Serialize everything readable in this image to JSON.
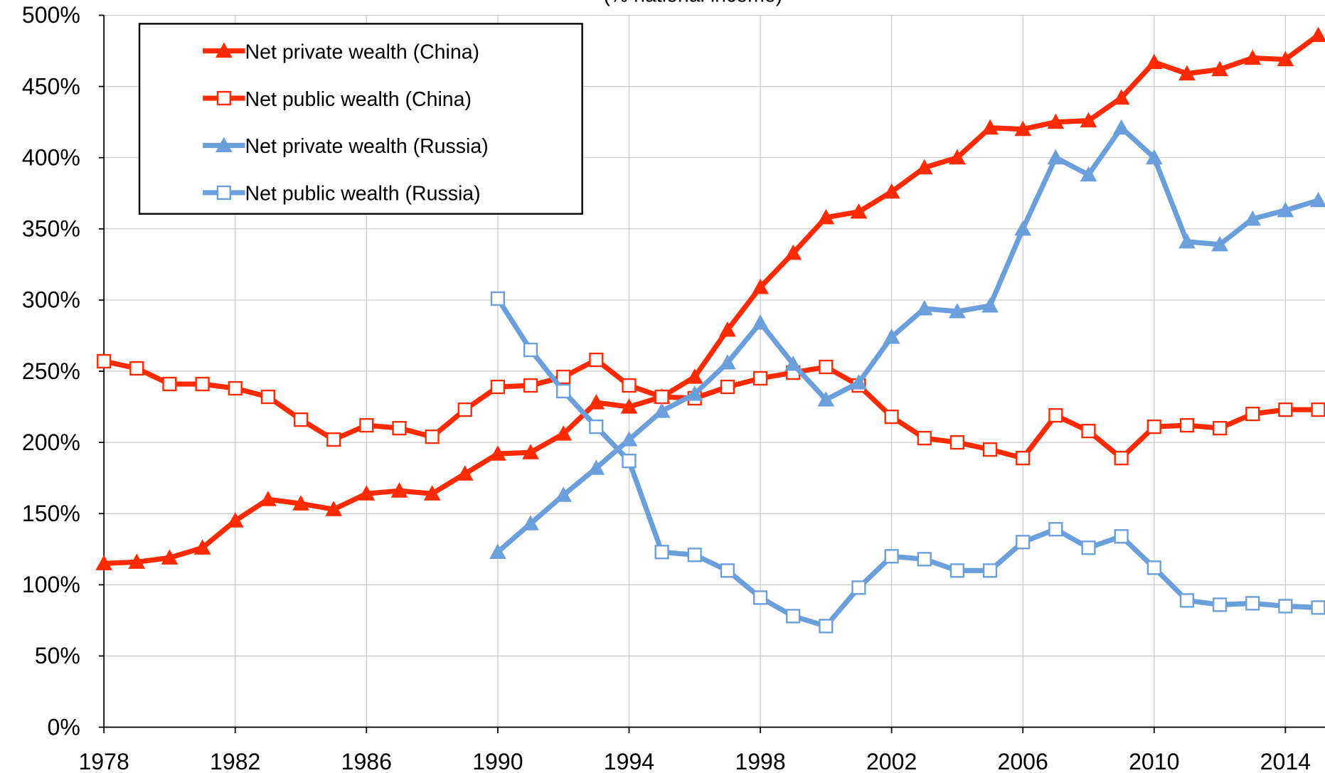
{
  "chart_data": {
    "type": "line",
    "subtitle": "(% national income)",
    "x": [
      1978,
      1979,
      1980,
      1981,
      1982,
      1983,
      1984,
      1985,
      1986,
      1987,
      1988,
      1989,
      1990,
      1991,
      1992,
      1993,
      1994,
      1995,
      1996,
      1997,
      1998,
      1999,
      2000,
      2001,
      2002,
      2003,
      2004,
      2005,
      2006,
      2007,
      2008,
      2009,
      2010,
      2011,
      2012,
      2013,
      2014,
      2015
    ],
    "series": [
      {
        "name": "Net private wealth (China)",
        "color": "#ff2a00",
        "marker": "triangle",
        "values": [
          115,
          116,
          119,
          126,
          145,
          160,
          157,
          153,
          164,
          166,
          164,
          178,
          192,
          193,
          206,
          228,
          225,
          232,
          246,
          279,
          309,
          333,
          358,
          362,
          376,
          393,
          400,
          421,
          420,
          425,
          426,
          442,
          467,
          459,
          462,
          470,
          469,
          486
        ]
      },
      {
        "name": "Net public wealth (China)",
        "color": "#ff2a00",
        "marker": "square",
        "values": [
          257,
          252,
          241,
          241,
          238,
          232,
          216,
          202,
          212,
          210,
          204,
          223,
          239,
          240,
          246,
          258,
          240,
          232,
          231,
          239,
          245,
          249,
          253,
          240,
          218,
          203,
          200,
          195,
          189,
          219,
          208,
          189,
          211,
          212,
          210,
          220,
          223,
          223
        ]
      },
      {
        "name": "Net private wealth (Russia)",
        "color": "#6a9fdc",
        "marker": "triangle",
        "values": [
          null,
          null,
          null,
          null,
          null,
          null,
          null,
          null,
          null,
          null,
          null,
          null,
          123,
          143,
          163,
          182,
          202,
          222,
          234,
          256,
          284,
          255,
          230,
          242,
          274,
          294,
          292,
          296,
          350,
          400,
          388,
          421,
          400,
          341,
          339,
          357,
          363,
          370
        ]
      },
      {
        "name": "Net public wealth (Russia)",
        "color": "#6a9fdc",
        "marker": "square",
        "values": [
          null,
          null,
          null,
          null,
          null,
          null,
          null,
          null,
          null,
          null,
          null,
          null,
          301,
          265,
          236,
          211,
          187,
          123,
          121,
          110,
          91,
          78,
          71,
          98,
          120,
          118,
          110,
          110,
          130,
          139,
          126,
          134,
          112,
          89,
          86,
          87,
          85,
          84
        ]
      }
    ],
    "xlim": [
      1978,
      2015
    ],
    "xticks": [
      1978,
      1982,
      1986,
      1990,
      1994,
      1998,
      2002,
      2006,
      2010,
      2014
    ],
    "ylim": [
      0,
      500
    ],
    "yticks": [
      {
        "value": 0,
        "label": "0%"
      },
      {
        "value": 50,
        "label": "50%"
      },
      {
        "value": 100,
        "label": "100%"
      },
      {
        "value": 150,
        "label": "150%"
      },
      {
        "value": 200,
        "label": "200%"
      },
      {
        "value": 250,
        "label": "250%"
      },
      {
        "value": 300,
        "label": "300%"
      },
      {
        "value": 350,
        "label": "350%"
      },
      {
        "value": 400,
        "label": "400%"
      },
      {
        "value": 450,
        "label": "450%"
      },
      {
        "value": 500,
        "label": "500%"
      }
    ],
    "grid": true,
    "legend": "upper left"
  }
}
